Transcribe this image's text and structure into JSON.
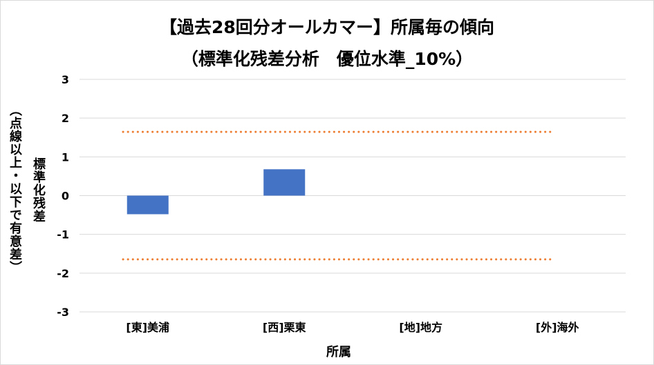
{
  "chart_data": {
    "type": "bar",
    "title": "【過去28回分オールカマー】所属毎の傾向",
    "subtitle": "（標準化残差分析　優位水準_10%）",
    "xlabel": "所属",
    "ylabel_lines": [
      "（点線以上・以下で有意差）",
      "標準化残差"
    ],
    "categories": [
      "[東]美浦",
      "[西]栗東",
      "[地]地方",
      "[外]海外"
    ],
    "values": [
      -0.48,
      0.68,
      0,
      0
    ],
    "ylim": [
      -3,
      3
    ],
    "yticks": [
      3,
      2,
      1,
      0,
      -1,
      -2,
      -3
    ],
    "threshold_lines": [
      1.645,
      -1.645
    ],
    "grid": true,
    "legend": "none",
    "bar_color": "#4472c4",
    "threshold_color": "#ed7d31",
    "grid_color": "#d9d9d9"
  }
}
